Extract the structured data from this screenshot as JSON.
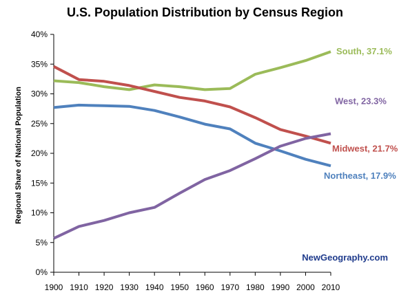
{
  "chart_data": {
    "type": "line",
    "title": "U.S. Population Distribution by Census Region",
    "ylabel": "Regional Share of National Population",
    "xlabel": "",
    "x": [
      1900,
      1910,
      1920,
      1930,
      1940,
      1950,
      1960,
      1970,
      1980,
      1990,
      2000,
      2010
    ],
    "x_tick_labels": [
      "1900",
      "1910",
      "1920",
      "1930",
      "1940",
      "1950",
      "1960",
      "1970",
      "1980",
      "1990",
      "2000",
      "2010"
    ],
    "ylim": [
      0,
      40
    ],
    "y_ticks": [
      0,
      5,
      10,
      15,
      20,
      25,
      30,
      35,
      40
    ],
    "y_tick_labels": [
      "0%",
      "5%",
      "10%",
      "15%",
      "20%",
      "25%",
      "30%",
      "35%",
      "40%"
    ],
    "grid": false,
    "series": [
      {
        "name": "South",
        "color": "#9bbb59",
        "end_label": "South, 37.1%",
        "values": [
          32.2,
          31.9,
          31.2,
          30.7,
          31.5,
          31.2,
          30.7,
          30.9,
          33.3,
          34.4,
          35.6,
          37.1
        ]
      },
      {
        "name": "Midwest",
        "color": "#c0504d",
        "end_label": "Midwest, 21.7%",
        "values": [
          34.6,
          32.4,
          32.1,
          31.4,
          30.4,
          29.4,
          28.8,
          27.8,
          26.0,
          24.0,
          22.9,
          21.7
        ]
      },
      {
        "name": "Northeast",
        "color": "#4f81bd",
        "end_label": "Northeast, 17.9%",
        "values": [
          27.7,
          28.1,
          28.0,
          27.9,
          27.2,
          26.1,
          24.9,
          24.1,
          21.7,
          20.4,
          19.0,
          17.9
        ]
      },
      {
        "name": "West",
        "color": "#8064a2",
        "end_label": "West, 23.3%",
        "values": [
          5.7,
          7.7,
          8.7,
          10.0,
          10.9,
          13.3,
          15.6,
          17.1,
          19.1,
          21.2,
          22.5,
          23.3
        ]
      }
    ]
  },
  "credit": "NewGeography.com"
}
